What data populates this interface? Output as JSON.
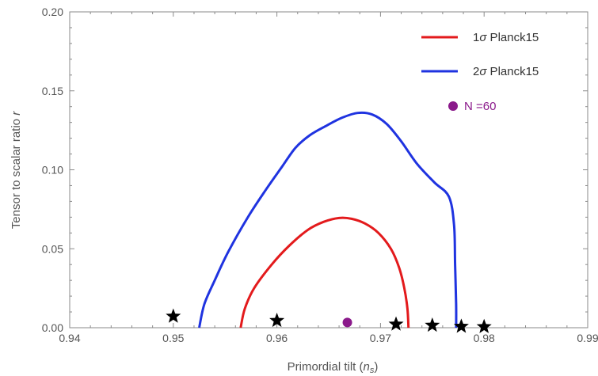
{
  "chart_data": {
    "type": "line",
    "title": "",
    "xlabel": "Primordial tilt (n_s)",
    "xlabel_base": "Primordial tilt (",
    "xlabel_sym": "n",
    "xlabel_sub": "s",
    "xlabel_close": ")",
    "ylabel": "Tensor to scalar ratio r",
    "ylabel_base": "Tensor to scalar ratio ",
    "ylabel_sym": "r",
    "xlim": [
      0.94,
      0.99
    ],
    "ylim": [
      0.0,
      0.2
    ],
    "x_ticks": [
      {
        "value": 0.94,
        "label": "0.94"
      },
      {
        "value": 0.95,
        "label": "0.95"
      },
      {
        "value": 0.96,
        "label": "0.96"
      },
      {
        "value": 0.97,
        "label": "0.97"
      },
      {
        "value": 0.98,
        "label": "0.98"
      },
      {
        "value": 0.99,
        "label": "0.99"
      }
    ],
    "y_ticks": [
      {
        "value": 0.0,
        "label": "0.00"
      },
      {
        "value": 0.05,
        "label": "0.05"
      },
      {
        "value": 0.1,
        "label": "0.10"
      },
      {
        "value": 0.15,
        "label": "0.15"
      },
      {
        "value": 0.2,
        "label": "0.20"
      }
    ],
    "grid": false,
    "legend_position": "top-right",
    "contours": [
      {
        "name": "1σ Planck15",
        "color": "#e31a1c",
        "points": [
          [
            0.9565,
            0.0
          ],
          [
            0.9569,
            0.012
          ],
          [
            0.9578,
            0.025
          ],
          [
            0.9595,
            0.04
          ],
          [
            0.9612,
            0.052
          ],
          [
            0.963,
            0.062
          ],
          [
            0.9645,
            0.067
          ],
          [
            0.966,
            0.0695
          ],
          [
            0.9672,
            0.069
          ],
          [
            0.9685,
            0.066
          ],
          [
            0.9698,
            0.06
          ],
          [
            0.971,
            0.05
          ],
          [
            0.9718,
            0.038
          ],
          [
            0.9723,
            0.025
          ],
          [
            0.9726,
            0.012
          ],
          [
            0.9727,
            0.0
          ]
        ]
      },
      {
        "name": "2σ Planck15",
        "color": "#1f33e0",
        "points": [
          [
            0.9525,
            0.0
          ],
          [
            0.953,
            0.015
          ],
          [
            0.954,
            0.03
          ],
          [
            0.9553,
            0.048
          ],
          [
            0.9572,
            0.07
          ],
          [
            0.959,
            0.088
          ],
          [
            0.9605,
            0.102
          ],
          [
            0.9618,
            0.114
          ],
          [
            0.9632,
            0.122
          ],
          [
            0.9648,
            0.128
          ],
          [
            0.9663,
            0.133
          ],
          [
            0.9678,
            0.136
          ],
          [
            0.9692,
            0.135
          ],
          [
            0.9706,
            0.129
          ],
          [
            0.972,
            0.118
          ],
          [
            0.9735,
            0.104
          ],
          [
            0.9752,
            0.092
          ],
          [
            0.9766,
            0.083
          ],
          [
            0.9771,
            0.065
          ],
          [
            0.9772,
            0.04
          ],
          [
            0.9773,
            0.015
          ],
          [
            0.9773,
            0.0
          ]
        ]
      }
    ],
    "stars": [
      [
        0.95,
        0.0072
      ],
      [
        0.96,
        0.0045
      ],
      [
        0.9715,
        0.0022
      ],
      [
        0.975,
        0.0015
      ],
      [
        0.9778,
        0.0008
      ],
      [
        0.98,
        0.0006
      ]
    ],
    "points_series": {
      "name": "N =60",
      "color": "#8b1a8b",
      "points": [
        [
          0.9668,
          0.0033
        ]
      ]
    },
    "legend": [
      {
        "label_prefix": "1",
        "label_sym": "σ",
        "label_suffix": " Planck15",
        "color": "#e31a1c",
        "marker": "line"
      },
      {
        "label_prefix": "2",
        "label_sym": "σ",
        "label_suffix": " Planck15",
        "color": "#1f33e0",
        "marker": "line"
      },
      {
        "label_prefix": "N =60",
        "label_sym": "",
        "label_suffix": "",
        "color": "#8b1a8b",
        "marker": "dot"
      }
    ]
  }
}
